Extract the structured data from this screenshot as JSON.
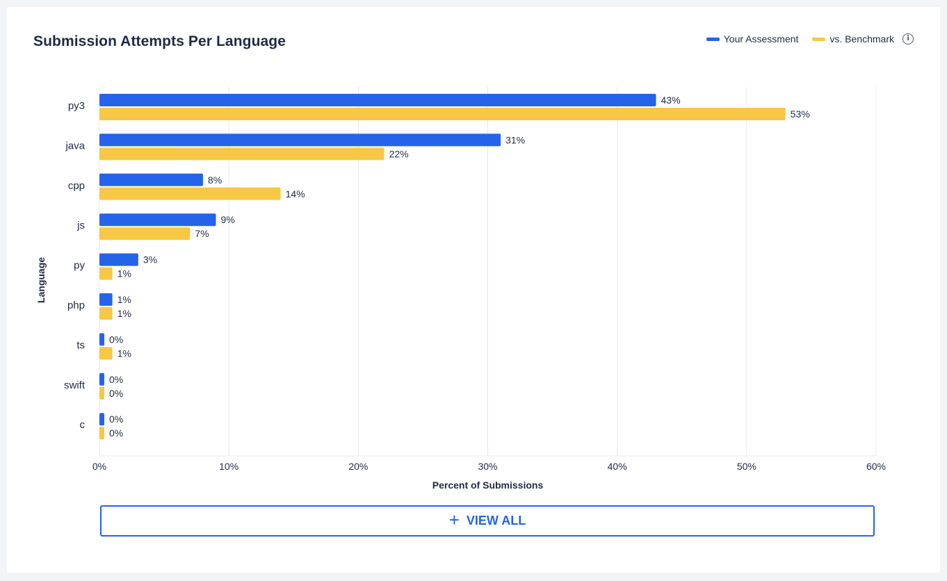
{
  "header": {
    "title": "Submission Attempts Per Language"
  },
  "legend": {
    "items": [
      {
        "label": "Your Assessment",
        "color": "#2563eb"
      },
      {
        "label": "vs. Benchmark",
        "color": "#f7c845"
      }
    ],
    "info_icon": "info-circle-icon"
  },
  "chart_data": {
    "type": "bar",
    "orientation": "horizontal",
    "categories": [
      "py3",
      "java",
      "cpp",
      "js",
      "py",
      "php",
      "ts",
      "swift",
      "c"
    ],
    "series": [
      {
        "name": "Your Assessment",
        "color": "#2563eb",
        "values": [
          43,
          31,
          8,
          9,
          3,
          1,
          0,
          0,
          0
        ]
      },
      {
        "name": "vs. Benchmark",
        "color": "#f7c845",
        "values": [
          53,
          22,
          14,
          7,
          1,
          1,
          1,
          0,
          0
        ]
      }
    ],
    "xlabel": "Percent of Submissions",
    "ylabel": "Language",
    "xlim": [
      0,
      60
    ],
    "xticks": [
      "0%",
      "10%",
      "20%",
      "30%",
      "40%",
      "50%",
      "60%"
    ],
    "grid": "vertical",
    "legend_position": "top-right",
    "value_suffix": "%"
  },
  "footer": {
    "view_all_label": "VIEW ALL",
    "view_all_icon": "plus-icon"
  }
}
